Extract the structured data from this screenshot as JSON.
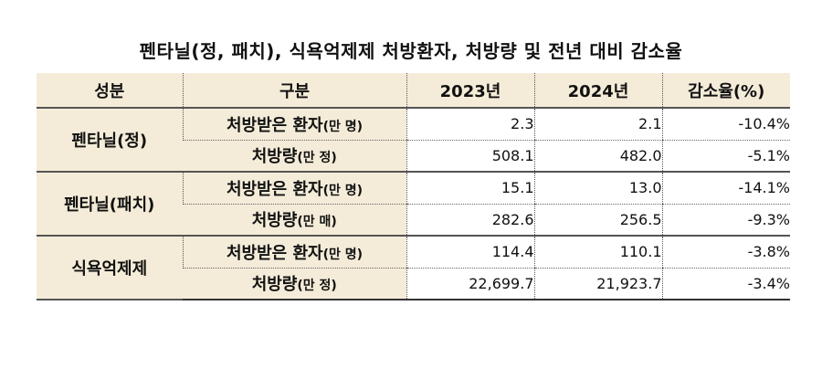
{
  "title": "펜타닐(정, 패치), 식욕억제제 처방환자, 처방량 및 전년 대비 감소율",
  "headers": {
    "component": "성분",
    "category": "구분",
    "year1": "2023년",
    "year2": "2024년",
    "change": "감소율(%)"
  },
  "groups": [
    {
      "name": "펜타닐(정)",
      "rows": [
        {
          "label": "처방받은 환자",
          "unit": "(만 명)",
          "y2023": "2.3",
          "y2024": "2.1",
          "change": "-10.4%"
        },
        {
          "label": "처방량",
          "unit": "(만 정)",
          "y2023": "508.1",
          "y2024": "482.0",
          "change": "-5.1%"
        }
      ]
    },
    {
      "name": "펜타닐(패치)",
      "rows": [
        {
          "label": "처방받은 환자",
          "unit": "(만 명)",
          "y2023": "15.1",
          "y2024": "13.0",
          "change": "-14.1%"
        },
        {
          "label": "처방량",
          "unit": "(만 매)",
          "y2023": "282.6",
          "y2024": "256.5",
          "change": "-9.3%"
        }
      ]
    },
    {
      "name": "식욕억제제",
      "rows": [
        {
          "label": "처방받은 환자",
          "unit": "(만 명)",
          "y2023": "114.4",
          "y2024": "110.1",
          "change": "-3.8%"
        },
        {
          "label": "처방량",
          "unit": "(만 정)",
          "y2023": "22,699.7",
          "y2024": "21,923.7",
          "change": "-3.4%"
        }
      ]
    }
  ]
}
